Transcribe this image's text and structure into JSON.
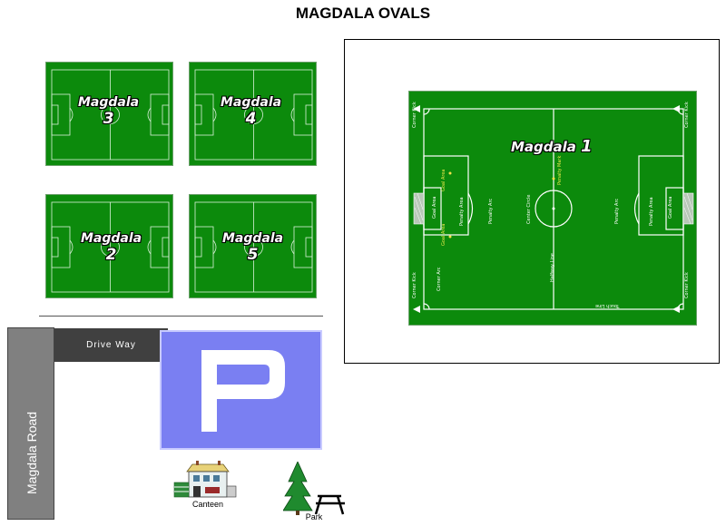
{
  "title": "MAGDALA OVALS",
  "fields": {
    "field_1": {
      "name": "Magdala",
      "number": "1"
    },
    "field_2": {
      "name": "Magdala",
      "number": "2"
    },
    "field_3": {
      "name": "Magdala",
      "number": "3"
    },
    "field_4": {
      "name": "Magdala",
      "number": "4"
    },
    "field_5": {
      "name": "Magdala",
      "number": "5"
    }
  },
  "pitch_labels": {
    "corner_kick": "Corner Kick",
    "corner_arc": "Corner Arc",
    "goal_area": "Goal Area",
    "penalty_area": "Penalty Area",
    "penalty_arc": "Penalty Arc",
    "center_circle": "Center Circle",
    "halfway_line": "Halfway Line",
    "touch_line": "Touch Line",
    "goal": "Goal",
    "penalty_mark": "Penalty Mark"
  },
  "road": "Magdala Road",
  "driveway": "Drive Way",
  "parking_symbol": "P",
  "canteen": "Canteen",
  "park": "Park",
  "colors": {
    "pitch_green": "#0c8a0c",
    "parking_blue": "#7a7ff2",
    "road_gray": "#808080",
    "driveway_dark": "#404040"
  }
}
